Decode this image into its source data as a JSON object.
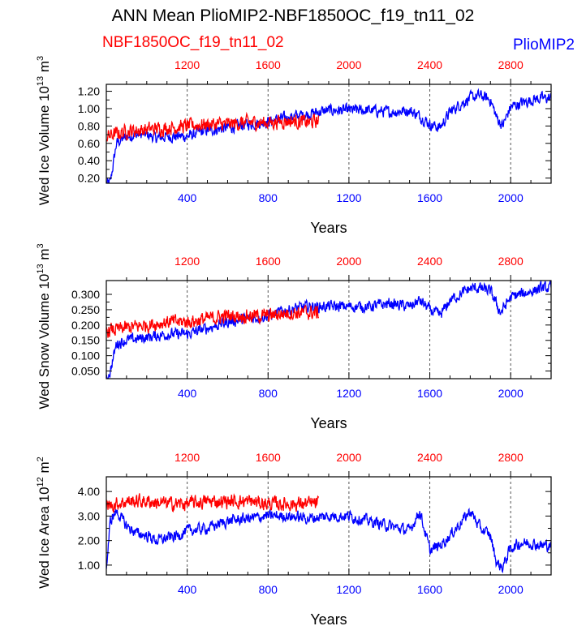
{
  "title": "ANN Mean PlioMIP2-NBF1850OC_f19_tn11_02",
  "legend": {
    "left_label": "NBF1850OC_f19_tn11_02",
    "left_color": "#ff0000",
    "right_label": "PlioMIP2",
    "right_color": "#0000ff"
  },
  "chart_data": [
    {
      "type": "line",
      "ylabel": "Wed Ice Volume 10^13 m^3",
      "xlabel": "Years",
      "bottom_axis": {
        "range": [
          0,
          2200
        ],
        "ticks": [
          400,
          800,
          1200,
          1600,
          2000
        ],
        "color": "#0000ff"
      },
      "top_axis": {
        "range": [
          800,
          3000
        ],
        "ticks": [
          1200,
          1600,
          2000,
          2400,
          2800
        ],
        "color": "#ff0000"
      },
      "yticks": [
        "0.20",
        "0.40",
        "0.60",
        "0.80",
        "1.00",
        "1.20"
      ],
      "ylim": [
        0.14,
        1.28
      ],
      "grid": "dashed vertical lines at bottom ticks",
      "series": [
        {
          "name": "PlioMIP2",
          "color": "#0000ff",
          "x": [
            0,
            20,
            50,
            100,
            150,
            200,
            250,
            300,
            400,
            500,
            600,
            700,
            800,
            900,
            1000,
            1100,
            1200,
            1300,
            1400,
            1500,
            1560,
            1600,
            1650,
            1700,
            1750,
            1800,
            1850,
            1900,
            1930,
            1960,
            2000,
            2050,
            2100,
            2150,
            2200
          ],
          "values": [
            0.12,
            0.15,
            0.6,
            0.68,
            0.7,
            0.7,
            0.66,
            0.68,
            0.68,
            0.75,
            0.78,
            0.82,
            0.85,
            0.9,
            0.94,
            0.98,
            0.98,
            0.98,
            0.96,
            0.98,
            0.9,
            0.82,
            0.78,
            0.96,
            1.05,
            1.12,
            1.15,
            1.1,
            0.9,
            0.8,
            1.02,
            1.06,
            1.1,
            1.12,
            1.12
          ]
        },
        {
          "name": "NBF1850OC_f19_tn11_02",
          "color": "#ff0000",
          "x": [
            0,
            100,
            200,
            300,
            400,
            500,
            600,
            700,
            800,
            900,
            1000,
            1050
          ],
          "values": [
            0.68,
            0.74,
            0.76,
            0.78,
            0.8,
            0.82,
            0.82,
            0.84,
            0.84,
            0.86,
            0.84,
            0.86
          ]
        }
      ]
    },
    {
      "type": "line",
      "ylabel": "Wed Snow Volume 10^13 m^3",
      "xlabel": "Years",
      "bottom_axis": {
        "range": [
          0,
          2200
        ],
        "ticks": [
          400,
          800,
          1200,
          1600,
          2000
        ],
        "color": "#0000ff"
      },
      "top_axis": {
        "range": [
          800,
          3000
        ],
        "ticks": [
          1200,
          1600,
          2000,
          2400,
          2800
        ],
        "color": "#ff0000"
      },
      "yticks": [
        "0.050",
        "0.100",
        "0.150",
        "0.200",
        "0.250",
        "0.300"
      ],
      "ylim": [
        0.025,
        0.345
      ],
      "grid": "dashed vertical lines at bottom ticks",
      "series": [
        {
          "name": "PlioMIP2",
          "color": "#0000ff",
          "x": [
            0,
            20,
            50,
            100,
            200,
            300,
            400,
            500,
            600,
            700,
            800,
            900,
            1000,
            1100,
            1200,
            1300,
            1400,
            1500,
            1550,
            1600,
            1650,
            1700,
            1750,
            1800,
            1850,
            1900,
            1950,
            2000,
            2050,
            2100,
            2150,
            2200
          ],
          "values": [
            0.025,
            0.05,
            0.14,
            0.15,
            0.16,
            0.17,
            0.17,
            0.19,
            0.21,
            0.22,
            0.23,
            0.25,
            0.26,
            0.26,
            0.26,
            0.26,
            0.27,
            0.26,
            0.28,
            0.25,
            0.23,
            0.28,
            0.3,
            0.32,
            0.32,
            0.31,
            0.24,
            0.29,
            0.3,
            0.31,
            0.32,
            0.32
          ]
        },
        {
          "name": "NBF1850OC_f19_tn11_02",
          "color": "#ff0000",
          "x": [
            0,
            100,
            200,
            300,
            400,
            500,
            600,
            700,
            800,
            900,
            1000,
            1050
          ],
          "values": [
            0.18,
            0.19,
            0.2,
            0.21,
            0.21,
            0.22,
            0.23,
            0.23,
            0.23,
            0.24,
            0.24,
            0.24
          ]
        }
      ]
    },
    {
      "type": "line",
      "ylabel": "Wed Ice Area 10^12 m^2",
      "xlabel": "Years",
      "bottom_axis": {
        "range": [
          0,
          2200
        ],
        "ticks": [
          400,
          800,
          1200,
          1600,
          2000
        ],
        "color": "#0000ff"
      },
      "top_axis": {
        "range": [
          800,
          3000
        ],
        "ticks": [
          1200,
          1600,
          2000,
          2400,
          2800
        ],
        "color": "#ff0000"
      },
      "yticks": [
        "1.00",
        "2.00",
        "3.00",
        "4.00"
      ],
      "ylim": [
        0.6,
        4.6
      ],
      "grid": "dashed vertical lines at bottom ticks",
      "series": [
        {
          "name": "PlioMIP2",
          "color": "#0000ff",
          "x": [
            0,
            20,
            50,
            100,
            150,
            200,
            250,
            300,
            350,
            400,
            500,
            600,
            700,
            800,
            900,
            1000,
            1100,
            1200,
            1300,
            1400,
            1500,
            1550,
            1600,
            1650,
            1700,
            1750,
            1800,
            1850,
            1900,
            1930,
            1960,
            2000,
            2050,
            2100,
            2150,
            2200
          ],
          "values": [
            0.8,
            2.8,
            3.2,
            2.6,
            2.3,
            2.2,
            2.0,
            2.1,
            2.2,
            2.4,
            2.5,
            2.8,
            2.9,
            3.0,
            3.0,
            2.9,
            3.0,
            3.0,
            2.8,
            2.6,
            2.4,
            3.2,
            1.6,
            1.8,
            2.2,
            2.7,
            3.2,
            2.5,
            2.2,
            1.1,
            0.9,
            1.7,
            1.9,
            1.9,
            1.8,
            1.8
          ]
        },
        {
          "name": "NBF1850OC_f19_tn11_02",
          "color": "#ff0000",
          "x": [
            0,
            100,
            200,
            300,
            400,
            500,
            600,
            700,
            800,
            900,
            1000,
            1050
          ],
          "values": [
            3.4,
            3.6,
            3.6,
            3.5,
            3.5,
            3.6,
            3.6,
            3.6,
            3.5,
            3.5,
            3.5,
            3.5
          ]
        }
      ]
    }
  ]
}
